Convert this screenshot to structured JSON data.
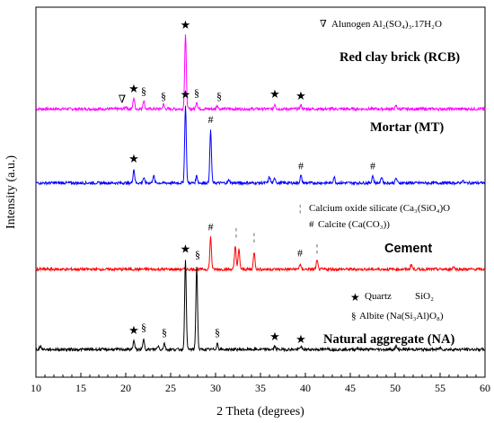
{
  "chart_data": {
    "type": "line",
    "title": "",
    "xlabel": "2 Theta (degrees)",
    "ylabel": "Intensity (a.u.)",
    "xlim": [
      10,
      60
    ],
    "xticks": [
      "10",
      "15",
      "20",
      "25",
      "30",
      "35",
      "40",
      "45",
      "50",
      "55",
      "60"
    ],
    "yticks_shown": false,
    "grid": false,
    "series": [
      {
        "name": "Red clay brick (RCB)",
        "color": "#ff00ff",
        "baseline": 4.35,
        "peaks": [
          [
            20.0,
            0.04
          ],
          [
            20.9,
            0.18
          ],
          [
            22.0,
            0.14
          ],
          [
            24.2,
            0.07
          ],
          [
            26.65,
            1.2
          ],
          [
            27.9,
            0.12
          ],
          [
            30.2,
            0.06
          ],
          [
            36.6,
            0.08
          ],
          [
            39.5,
            0.06
          ],
          [
            50.1,
            0.05
          ]
        ]
      },
      {
        "name": "Mortar (MT)",
        "color": "#0000ff",
        "baseline": 3.15,
        "peaks": [
          [
            20.9,
            0.22
          ],
          [
            22.0,
            0.08
          ],
          [
            23.1,
            0.12
          ],
          [
            26.65,
            1.25
          ],
          [
            27.9,
            0.12
          ],
          [
            29.45,
            0.85
          ],
          [
            31.5,
            0.05
          ],
          [
            36.0,
            0.1
          ],
          [
            36.6,
            0.08
          ],
          [
            39.5,
            0.12
          ],
          [
            43.2,
            0.1
          ],
          [
            47.5,
            0.12
          ],
          [
            48.5,
            0.1
          ],
          [
            50.1,
            0.08
          ],
          [
            57.5,
            0.04
          ]
        ]
      },
      {
        "name": "Cement",
        "color": "#ff0000",
        "baseline": 1.75,
        "peaks": [
          [
            29.45,
            0.52
          ],
          [
            32.2,
            0.38
          ],
          [
            32.6,
            0.32
          ],
          [
            34.3,
            0.28
          ],
          [
            39.4,
            0.08
          ],
          [
            41.3,
            0.14
          ],
          [
            51.8,
            0.08
          ],
          [
            56.5,
            0.05
          ]
        ]
      },
      {
        "name": "Natural aggregate (NA)",
        "color": "#000000",
        "baseline": 0.45,
        "peaks": [
          [
            10.5,
            0.06
          ],
          [
            20.9,
            0.14
          ],
          [
            22.0,
            0.16
          ],
          [
            23.6,
            0.06
          ],
          [
            24.3,
            0.1
          ],
          [
            26.65,
            1.45
          ],
          [
            27.9,
            1.35
          ],
          [
            30.2,
            0.1
          ],
          [
            36.6,
            0.05
          ],
          [
            39.5,
            0.05
          ],
          [
            42.5,
            0.03
          ],
          [
            45.8,
            0.03
          ],
          [
            50.1,
            0.05
          ],
          [
            55.0,
            0.03
          ]
        ]
      }
    ],
    "series_labels": [
      {
        "text": "Red clay brick (RCB)",
        "bold": true
      },
      {
        "text": "Mortar (MT)",
        "bold": true
      },
      {
        "text": "Cement",
        "bold": true
      },
      {
        "text": "Natural aggregate (NA)",
        "bold": true
      }
    ],
    "legend_notes": [
      {
        "symbol": "∇",
        "text": "Alunogen Al₂(SO₄)₃.17H₂O"
      },
      {
        "symbol": "¦",
        "text": "Calcium oxide silicate (Ca₃(SiO₄)O"
      },
      {
        "symbol": "#",
        "text": "Calcite (Ca(CO₃))"
      },
      {
        "symbol": "★",
        "text": "Quartz",
        "formula": "SiO₂"
      },
      {
        "symbol": "§",
        "text": "Albite (Na(Si₃Al)O₈)"
      }
    ],
    "annotations": [
      {
        "symbol": "∇",
        "x": 19.6,
        "y": 4.45
      },
      {
        "symbol": "★",
        "x": 20.9,
        "y": 4.62
      },
      {
        "symbol": "§",
        "x": 22.0,
        "y": 4.58
      },
      {
        "symbol": "§",
        "x": 24.2,
        "y": 4.5
      },
      {
        "symbol": "★",
        "x": 26.65,
        "y": 5.65
      },
      {
        "symbol": "§",
        "x": 27.9,
        "y": 4.55
      },
      {
        "symbol": "§",
        "x": 30.4,
        "y": 4.5
      },
      {
        "symbol": "★",
        "x": 36.6,
        "y": 4.53
      },
      {
        "symbol": "★",
        "x": 39.5,
        "y": 4.5
      },
      {
        "symbol": "★",
        "x": 20.9,
        "y": 3.48
      },
      {
        "symbol": "★",
        "x": 26.65,
        "y": 4.52
      },
      {
        "symbol": "#",
        "x": 29.45,
        "y": 4.12
      },
      {
        "symbol": "#",
        "x": 39.5,
        "y": 3.37
      },
      {
        "symbol": "#",
        "x": 47.5,
        "y": 3.37
      },
      {
        "symbol": "#",
        "x": 29.45,
        "y": 2.38
      },
      {
        "symbol": "¦",
        "x": 32.3,
        "y": 2.3
      },
      {
        "symbol": "¦",
        "x": 34.3,
        "y": 2.22
      },
      {
        "symbol": "#",
        "x": 39.4,
        "y": 1.96
      },
      {
        "symbol": "¦",
        "x": 41.3,
        "y": 2.04
      },
      {
        "symbol": "★",
        "x": 20.9,
        "y": 0.7
      },
      {
        "symbol": "§",
        "x": 22.0,
        "y": 0.75
      },
      {
        "symbol": "§",
        "x": 24.3,
        "y": 0.67
      },
      {
        "symbol": "★",
        "x": 26.65,
        "y": 2.02
      },
      {
        "symbol": "§",
        "x": 28.0,
        "y": 1.93
      },
      {
        "symbol": "§",
        "x": 30.2,
        "y": 0.67
      },
      {
        "symbol": "★",
        "x": 36.6,
        "y": 0.6
      },
      {
        "symbol": "★",
        "x": 39.5,
        "y": 0.55
      }
    ]
  }
}
